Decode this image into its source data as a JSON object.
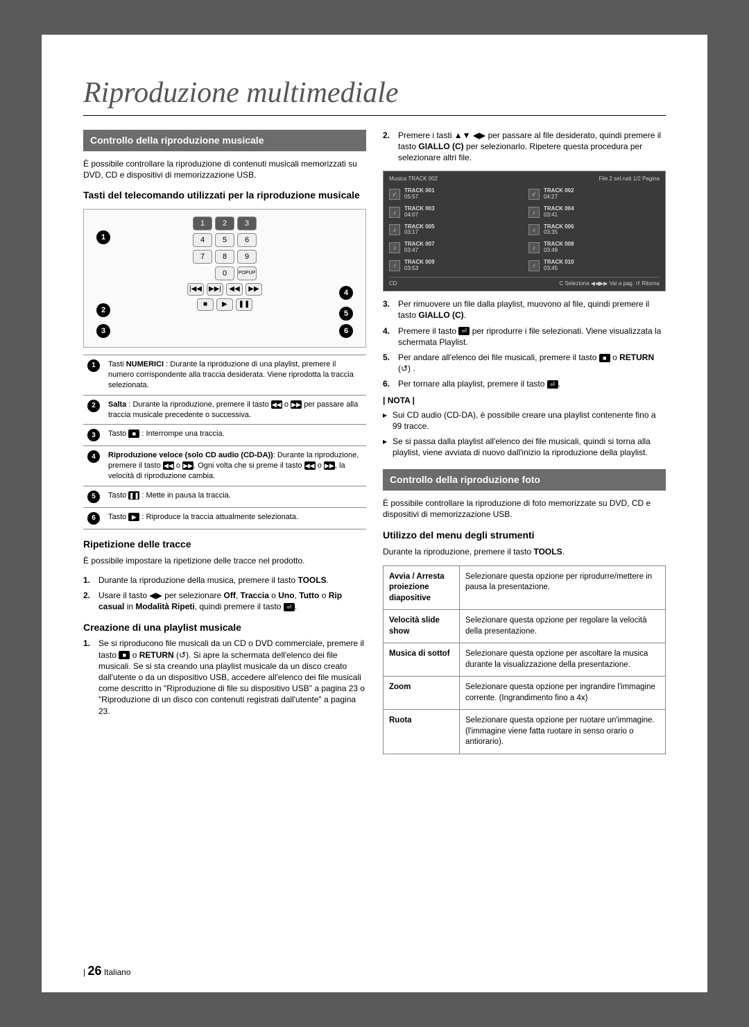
{
  "page_title": "Riproduzione multimediale",
  "left": {
    "section1_header": "Controllo della riproduzione musicale",
    "intro1": "È possibile controllare la riproduzione di contenuti musicali memorizzati su DVD, CD e dispositivi di memorizzazione USB.",
    "subhead1": "Tasti del telecomando utilizzati per la riproduzione musicale",
    "remote": {
      "keys_r1": [
        "1",
        "2",
        "3"
      ],
      "keys_r2": [
        "4",
        "5",
        "6"
      ],
      "keys_r3": [
        "7",
        "8",
        "9"
      ],
      "keys_r4": [
        "0"
      ],
      "popup": "POPUP",
      "ctrl_top": [
        "|◀◀",
        "▶▶|",
        "◀◀",
        "▶▶"
      ],
      "ctrl_bot": [
        "■",
        "▶",
        "❚❚"
      ]
    },
    "legend": [
      {
        "n": "1",
        "html": "Tasti <b>NUMERICI</b> : Durante la riproduzione di una playlist, premere il numero corrispondente alla traccia desiderata. Viene riprodotta la traccia selezionata."
      },
      {
        "n": "2",
        "html": "<b>Salta</b> : Durante la riproduzione, premere il tasto <span class='inline-icon'>◀◀</span> o <span class='inline-icon'>▶▶</span> per passare alla traccia musicale precedente o successiva."
      },
      {
        "n": "3",
        "html": "Tasto <span class='inline-icon'>■</span> : Interrompe una traccia."
      },
      {
        "n": "4",
        "html": "<b>Riproduzione veloce (solo CD audio (CD-DA))</b>: Durante la riproduzione, premere il tasto <span class='inline-icon'>◀◀</span> o <span class='inline-icon'>▶▶</span>. Ogni volta che si preme il tasto <span class='inline-icon'>◀◀</span> o <span class='inline-icon'>▶▶</span>, la velocità di riproduzione cambia."
      },
      {
        "n": "5",
        "html": "Tasto <span class='inline-icon'>❚❚</span> : Mette in pausa la traccia."
      },
      {
        "n": "6",
        "html": "Tasto <span class='inline-icon'>▶</span> : Riproduce la traccia attualmente selezionata."
      }
    ],
    "subhead2": "Ripetizione delle tracce",
    "rep_intro": "È possibile impostare la ripetizione delle tracce nel prodotto.",
    "rep_list": [
      "Durante la riproduzione della musica, premere il tasto <b>TOOLS</b>.",
      "Usare il tasto ◀▶ per selezionare <b>Off</b>, <b>Traccia</b> o <b>Uno</b>, <b>Tutto</b> o <b>Rip casual</b> in <b>Modalità Ripeti</b>, quindi premere il tasto <span class='inline-icon'>⏎</span>."
    ],
    "subhead3": "Creazione di una playlist musicale",
    "play_list": [
      "Se si riproducono file musicali da un CD o DVD commerciale, premere il tasto <span class='inline-icon'>■</span> o <b>RETURN</b> (↺). Si apre la schermata dell'elenco dei file musicali. Se si sta creando una playlist musicale da un disco creato dall'utente o da un dispositivo USB, accedere all'elenco dei file musicali come descritto in \"Riproduzione di file su dispositivo USB\" a pagina 23 o \"Riproduzione di un disco con contenuti registrati dall'utente\" a pagina 23."
    ]
  },
  "right": {
    "step2": "Premere i tasti ▲▼ ◀▶ per passare al file desiderato, quindi premere il tasto <b>GIALLO (C)</b> per selezionarlo. Ripetere questa procedura per selezionare altri file.",
    "music": {
      "header_left": "Musica  TRACK 002",
      "header_right": "File 2 sel.nati  1/2 Pagina",
      "tracks": [
        {
          "t": "TRACK 001",
          "d": "05:57",
          "sel": true
        },
        {
          "t": "TRACK 002",
          "d": "04:27",
          "sel": true
        },
        {
          "t": "TRACK 003",
          "d": "04:07"
        },
        {
          "t": "TRACK 004",
          "d": "03:41"
        },
        {
          "t": "TRACK 005",
          "d": "03:17"
        },
        {
          "t": "TRACK 006",
          "d": "03:35"
        },
        {
          "t": "TRACK 007",
          "d": "03:47"
        },
        {
          "t": "TRACK 008",
          "d": "03:49"
        },
        {
          "t": "TRACK 009",
          "d": "03:53"
        },
        {
          "t": "TRACK 010",
          "d": "03:45"
        }
      ],
      "bottom_left": "CD",
      "bottom_right": "C Seleziona  ◀◀▶▶ Vai a pag.  ↺ Ritorna"
    },
    "steps": [
      {
        "n": "3.",
        "html": "Per rimuovere un file dalla playlist, muovono al file, quindi premere il tasto <b>GIALLO (C)</b>."
      },
      {
        "n": "4.",
        "html": "Premere il tasto <span class='inline-icon'>⏎</span> per riprodurre i file selezionati. Viene visualizzata la schermata Playlist."
      },
      {
        "n": "5.",
        "html": "Per andare all'elenco dei file musicali, premere il tasto <span class='inline-icon'>■</span> o <b>RETURN</b> (↺) ."
      },
      {
        "n": "6.",
        "html": "Per tornare alla playlist, premere il tasto <span class='inline-icon'>⏎</span>."
      }
    ],
    "nota_label": "| NOTA |",
    "nota": [
      "Sui CD audio (CD-DA), è possibile creare una playlist contenente fino a 99 tracce.",
      "Se si passa dalla playlist all'elenco dei file musicali, quindi si torna alla playlist, viene avviata di nuovo dall'inizio la riproduzione della playlist."
    ],
    "section2_header": "Controllo della riproduzione foto",
    "intro2": "È possibile controllare la riproduzione di foto memorizzate su DVD, CD e dispositivi di memorizzazione USB.",
    "subhead4": "Utilizzo del menu degli strumenti",
    "tools_intro": "Durante la riproduzione, premere il tasto TOOLS.",
    "tools": [
      {
        "k": "Avvia / Arresta proiezione diapositive",
        "v": "Selezionare questa opzione per riprodurre/mettere in pausa la presentazione."
      },
      {
        "k": "Velocità slide show",
        "v": "Selezionare questa opzione per regolare la velocità della presentazione."
      },
      {
        "k": "Musica di sottof",
        "v": "Selezionare questa opzione per ascoltare la musica durante la visualizzazione della presentazione."
      },
      {
        "k": "Zoom",
        "v": "Selezionare questa opzione per ingrandire l'immagine corrente. (Ingrandimento fino a 4x)"
      },
      {
        "k": "Ruota",
        "v": "Selezionare questa opzione per ruotare un'immagine. (l'immagine viene fatta ruotare in senso orario o antiorario)."
      }
    ]
  },
  "footer": {
    "page": "26",
    "lang": "Italiano"
  }
}
